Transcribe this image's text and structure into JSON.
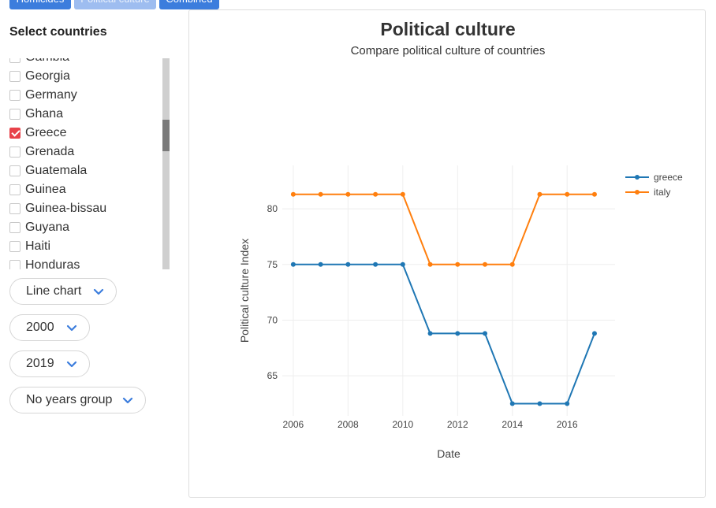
{
  "tabs": [
    {
      "label": "Homicides"
    },
    {
      "label": "Political culture"
    },
    {
      "label": "Combined"
    }
  ],
  "sidebar": {
    "title": "Select countries",
    "countries": [
      {
        "label": "Gambia",
        "checked": false
      },
      {
        "label": "Georgia",
        "checked": false
      },
      {
        "label": "Germany",
        "checked": false
      },
      {
        "label": "Ghana",
        "checked": false
      },
      {
        "label": "Greece",
        "checked": true
      },
      {
        "label": "Grenada",
        "checked": false
      },
      {
        "label": "Guatemala",
        "checked": false
      },
      {
        "label": "Guinea",
        "checked": false
      },
      {
        "label": "Guinea-bissau",
        "checked": false
      },
      {
        "label": "Guyana",
        "checked": false
      },
      {
        "label": "Haiti",
        "checked": false
      },
      {
        "label": "Honduras",
        "checked": false
      }
    ],
    "chart_type": "Line chart",
    "year_from": "2000",
    "year_to": "2019",
    "years_group": "No years group"
  },
  "chart": {
    "title": "Political culture",
    "subtitle": "Compare political culture of countries"
  },
  "chart_data": {
    "type": "line",
    "xlabel": "Date",
    "ylabel": "Political culture Index",
    "x": [
      2006,
      2007,
      2008,
      2009,
      2010,
      2011,
      2012,
      2013,
      2014,
      2015,
      2016,
      2017
    ],
    "xticks": [
      2006,
      2008,
      2010,
      2012,
      2014,
      2016
    ],
    "yticks": [
      65,
      70,
      75,
      80
    ],
    "xlim": [
      2005.6,
      2017.75
    ],
    "ylim": [
      61.4,
      83.9
    ],
    "grid": true,
    "legend_position": "top-right",
    "series": [
      {
        "name": "greece",
        "color": "#1f77b4",
        "values": [
          75,
          75,
          75,
          75,
          75,
          68.8,
          68.8,
          68.8,
          62.5,
          62.5,
          62.5,
          68.8
        ]
      },
      {
        "name": "italy",
        "color": "#ff7f0e",
        "values": [
          81.3,
          81.3,
          81.3,
          81.3,
          81.3,
          75,
          75,
          75,
          75,
          81.3,
          81.3,
          81.3
        ]
      }
    ]
  }
}
